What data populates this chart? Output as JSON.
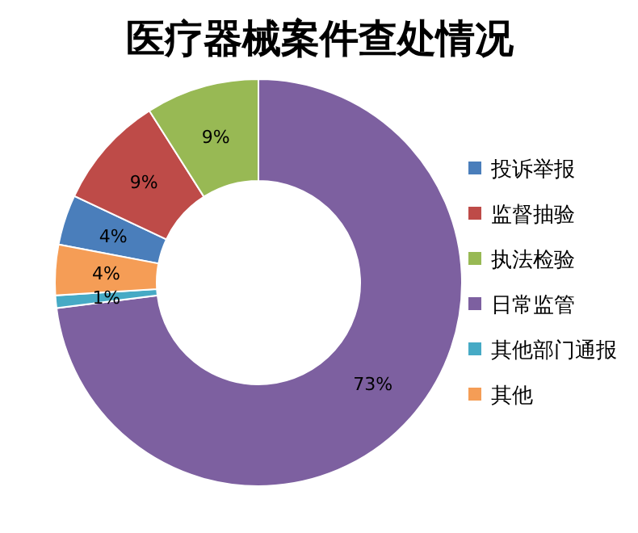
{
  "chart_data": {
    "type": "donut",
    "title": "医疗器械案件查处情况",
    "categories": [
      "投诉举报",
      "监督抽验",
      "执法检验",
      "日常监管",
      "其他部门通报",
      "其他"
    ],
    "values": [
      4,
      9,
      9,
      73,
      1,
      4
    ],
    "value_labels": [
      "4%",
      "9%",
      "9%",
      "73%",
      "1%",
      "4%"
    ],
    "colors": [
      "#4a7ebb",
      "#be4b48",
      "#98b954",
      "#7d60a0",
      "#46aac5",
      "#f59d56"
    ],
    "legend": "right"
  }
}
